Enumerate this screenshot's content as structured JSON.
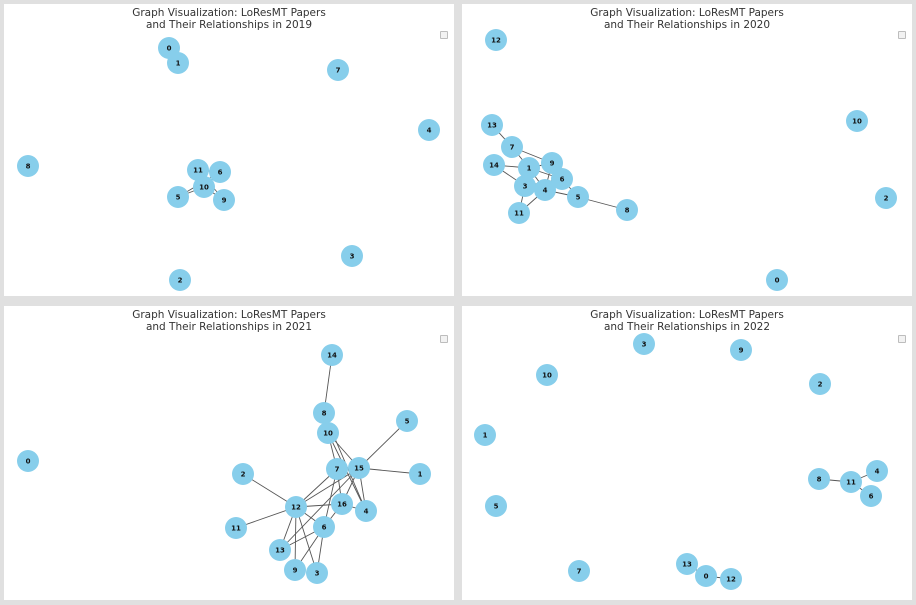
{
  "colors": {
    "node": "#87ceeb",
    "edge": "#555555",
    "background": "#e0e0e0",
    "panel": "#ffffff"
  },
  "panels": [
    {
      "title1": "Graph Visualization: LoResMT Papers",
      "title2": "and Their Relationships in 2019",
      "nodes": [
        {
          "id": "0"
        },
        {
          "id": "1"
        },
        {
          "id": "7"
        },
        {
          "id": "4"
        },
        {
          "id": "8"
        },
        {
          "id": "11"
        },
        {
          "id": "6"
        },
        {
          "id": "10"
        },
        {
          "id": "5"
        },
        {
          "id": "9"
        },
        {
          "id": "3"
        },
        {
          "id": "2"
        }
      ],
      "edges": [
        [
          "0",
          "1"
        ],
        [
          "11",
          "6"
        ],
        [
          "11",
          "10"
        ],
        [
          "6",
          "10"
        ],
        [
          "10",
          "5"
        ],
        [
          "10",
          "9"
        ],
        [
          "11",
          "9"
        ],
        [
          "6",
          "5"
        ]
      ]
    },
    {
      "title1": "Graph Visualization: LoResMT Papers",
      "title2": "and Their Relationships in 2020",
      "nodes": [
        {
          "id": "12"
        },
        {
          "id": "13"
        },
        {
          "id": "7"
        },
        {
          "id": "14"
        },
        {
          "id": "1"
        },
        {
          "id": "9"
        },
        {
          "id": "6"
        },
        {
          "id": "3"
        },
        {
          "id": "4"
        },
        {
          "id": "5"
        },
        {
          "id": "11"
        },
        {
          "id": "8"
        },
        {
          "id": "10"
        },
        {
          "id": "2"
        },
        {
          "id": "0"
        }
      ],
      "edges": [
        [
          "13",
          "7"
        ],
        [
          "7",
          "1"
        ],
        [
          "7",
          "9"
        ],
        [
          "14",
          "1"
        ],
        [
          "14",
          "3"
        ],
        [
          "1",
          "9"
        ],
        [
          "1",
          "6"
        ],
        [
          "9",
          "4"
        ],
        [
          "3",
          "4"
        ],
        [
          "3",
          "6"
        ],
        [
          "4",
          "5"
        ],
        [
          "4",
          "11"
        ],
        [
          "3",
          "11"
        ],
        [
          "5",
          "8"
        ],
        [
          "6",
          "5"
        ],
        [
          "1",
          "4"
        ]
      ]
    },
    {
      "title1": "Graph Visualization: LoResMT Papers",
      "title2": "and Their Relationships in 2021",
      "nodes": [
        {
          "id": "14"
        },
        {
          "id": "8"
        },
        {
          "id": "5"
        },
        {
          "id": "10"
        },
        {
          "id": "0"
        },
        {
          "id": "7"
        },
        {
          "id": "15"
        },
        {
          "id": "1"
        },
        {
          "id": "2"
        },
        {
          "id": "12"
        },
        {
          "id": "16"
        },
        {
          "id": "4"
        },
        {
          "id": "6"
        },
        {
          "id": "11"
        },
        {
          "id": "13"
        },
        {
          "id": "9"
        },
        {
          "id": "3"
        }
      ],
      "edges": [
        [
          "14",
          "8"
        ],
        [
          "8",
          "10"
        ],
        [
          "5",
          "15"
        ],
        [
          "10",
          "7"
        ],
        [
          "10",
          "15"
        ],
        [
          "7",
          "15"
        ],
        [
          "15",
          "1"
        ],
        [
          "2",
          "12"
        ],
        [
          "12",
          "11"
        ],
        [
          "12",
          "13"
        ],
        [
          "12",
          "9"
        ],
        [
          "12",
          "3"
        ],
        [
          "12",
          "6"
        ],
        [
          "12",
          "7"
        ],
        [
          "12",
          "15"
        ],
        [
          "12",
          "16"
        ],
        [
          "7",
          "16"
        ],
        [
          "15",
          "16"
        ],
        [
          "15",
          "4"
        ],
        [
          "16",
          "4"
        ],
        [
          "7",
          "6"
        ],
        [
          "6",
          "13"
        ],
        [
          "6",
          "9"
        ],
        [
          "6",
          "3"
        ],
        [
          "16",
          "6"
        ],
        [
          "10",
          "4"
        ],
        [
          "13",
          "15"
        ],
        [
          "8",
          "4"
        ]
      ]
    },
    {
      "title1": "Graph Visualization: LoResMT Papers",
      "title2": "and Their Relationships in 2022",
      "nodes": [
        {
          "id": "3"
        },
        {
          "id": "9"
        },
        {
          "id": "10"
        },
        {
          "id": "2"
        },
        {
          "id": "1"
        },
        {
          "id": "4"
        },
        {
          "id": "8"
        },
        {
          "id": "11"
        },
        {
          "id": "6"
        },
        {
          "id": "5"
        },
        {
          "id": "13"
        },
        {
          "id": "7"
        },
        {
          "id": "0"
        },
        {
          "id": "12"
        }
      ],
      "edges": [
        [
          "8",
          "11"
        ],
        [
          "11",
          "4"
        ],
        [
          "11",
          "6"
        ],
        [
          "13",
          "0"
        ],
        [
          "0",
          "12"
        ]
      ]
    }
  ]
}
